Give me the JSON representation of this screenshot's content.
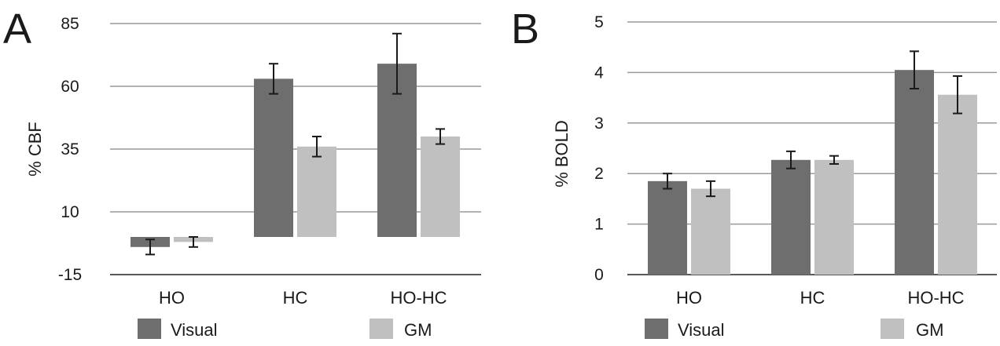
{
  "chart_data": [
    {
      "panel": "A",
      "type": "bar",
      "ylabel": "% CBF",
      "categories": [
        "HO",
        "HC",
        "HO-HC"
      ],
      "ylim": [
        -15,
        85
      ],
      "yticks": [
        -15,
        10,
        35,
        60,
        85
      ],
      "ytick_labels": [
        "-15",
        "10",
        "35",
        "60",
        "85"
      ],
      "grid": true,
      "legend_position": "bottom",
      "series": [
        {
          "name": "Visual",
          "color": "#6e6e6e",
          "values": [
            -4,
            63,
            69
          ],
          "errors": [
            3,
            6,
            12
          ]
        },
        {
          "name": "GM",
          "color": "#c0c0c0",
          "values": [
            -2,
            36,
            40
          ],
          "errors": [
            2,
            4,
            3
          ]
        }
      ]
    },
    {
      "panel": "B",
      "type": "bar",
      "ylabel": "% BOLD",
      "categories": [
        "HO",
        "HC",
        "HO-HC"
      ],
      "ylim": [
        0,
        5
      ],
      "yticks": [
        0,
        1,
        2,
        3,
        4,
        5
      ],
      "ytick_labels": [
        "0",
        "1",
        "2",
        "3",
        "4",
        "5"
      ],
      "grid": true,
      "legend_position": "bottom",
      "series": [
        {
          "name": "Visual",
          "color": "#6e6e6e",
          "values": [
            1.85,
            2.27,
            4.05
          ],
          "errors": [
            0.15,
            0.17,
            0.37
          ]
        },
        {
          "name": "GM",
          "color": "#c0c0c0",
          "values": [
            1.7,
            2.27,
            3.56
          ],
          "errors": [
            0.15,
            0.08,
            0.37
          ]
        }
      ]
    }
  ]
}
